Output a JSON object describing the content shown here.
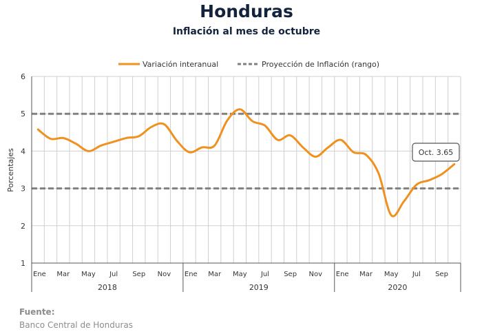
{
  "title": "Honduras",
  "subtitle": "Inflación al mes de octubre",
  "source": {
    "label": "Fuente:",
    "text": "Banco Central de Honduras"
  },
  "chart_data": {
    "type": "line",
    "ylabel": "Porcentajes",
    "ylim": [
      1,
      6
    ],
    "yticks": [
      1,
      2,
      3,
      4,
      5,
      6
    ],
    "grid": true,
    "legend_position": "top",
    "month_labels": [
      "Ene",
      "Mar",
      "May",
      "Jul",
      "Sep",
      "Nov"
    ],
    "month_label_indices": [
      0,
      2,
      4,
      6,
      8,
      10
    ],
    "years": [
      "2018",
      "2019",
      "2020"
    ],
    "series": [
      {
        "name": "Variación interanual",
        "color": "#f0901e",
        "style": "solid",
        "x_label": "monthly index from Ene 2018",
        "values": [
          4.58,
          4.33,
          4.35,
          4.2,
          4.0,
          4.15,
          4.25,
          4.35,
          4.4,
          4.65,
          4.72,
          4.28,
          3.97,
          4.1,
          4.15,
          4.82,
          5.12,
          4.8,
          4.68,
          4.3,
          4.42,
          4.1,
          3.85,
          4.1,
          4.3,
          3.97,
          3.9,
          3.4,
          2.28,
          2.65,
          3.1,
          3.22,
          3.38,
          3.65
        ]
      },
      {
        "name": "Proyección de Inflación (rango)",
        "color": "#808080",
        "style": "dashed",
        "values": [
          5,
          5
        ],
        "bounds": [
          3,
          5
        ]
      }
    ],
    "annotation": {
      "text": "Oct. 3.65",
      "x_index": 33,
      "y": 3.65
    }
  }
}
